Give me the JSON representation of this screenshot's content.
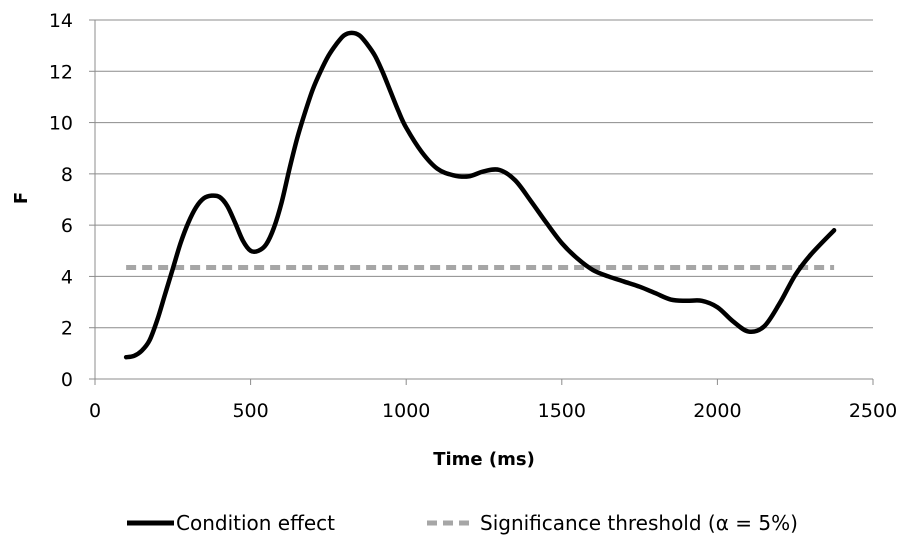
{
  "chart_data": {
    "type": "line",
    "title": "",
    "xlabel": "Time (ms)",
    "ylabel": "F",
    "xlim": [
      0,
      2500
    ],
    "ylim": [
      0,
      14
    ],
    "xticks": [
      0,
      500,
      1000,
      1500,
      2000,
      2500
    ],
    "yticks": [
      0,
      2,
      4,
      6,
      8,
      10,
      12,
      14
    ],
    "grid": {
      "horizontal": true,
      "vertical": false
    },
    "legend_position": "bottom",
    "series": [
      {
        "name": "Condition effect",
        "color": "#000000",
        "style": "solid",
        "x": [
          100,
          125,
          150,
          175,
          200,
          225,
          250,
          275,
          300,
          325,
          350,
          375,
          400,
          425,
          450,
          475,
          500,
          525,
          550,
          575,
          600,
          625,
          650,
          675,
          700,
          725,
          750,
          775,
          800,
          825,
          850,
          875,
          900,
          925,
          950,
          975,
          1000,
          1050,
          1100,
          1150,
          1200,
          1250,
          1300,
          1350,
          1400,
          1450,
          1500,
          1550,
          1600,
          1650,
          1700,
          1750,
          1800,
          1850,
          1900,
          1950,
          2000,
          2050,
          2100,
          2150,
          2200,
          2250,
          2300,
          2375
        ],
        "y": [
          0.85,
          0.9,
          1.1,
          1.5,
          2.3,
          3.3,
          4.3,
          5.3,
          6.1,
          6.7,
          7.05,
          7.15,
          7.1,
          6.75,
          6.1,
          5.4,
          5.0,
          5.0,
          5.25,
          5.9,
          6.9,
          8.2,
          9.4,
          10.4,
          11.3,
          12.0,
          12.6,
          13.05,
          13.4,
          13.5,
          13.4,
          13.05,
          12.6,
          11.95,
          11.2,
          10.45,
          9.8,
          8.85,
          8.2,
          7.95,
          7.9,
          8.1,
          8.15,
          7.75,
          6.95,
          6.1,
          5.3,
          4.7,
          4.25,
          4.0,
          3.8,
          3.6,
          3.35,
          3.1,
          3.05,
          3.05,
          2.8,
          2.25,
          1.85,
          2.05,
          2.95,
          4.05,
          4.85,
          5.8
        ]
      },
      {
        "name": "Significance threshold (α = 5%)",
        "color": "#a6a6a6",
        "style": "dashed",
        "x": [
          100,
          2375
        ],
        "y": [
          4.35,
          4.35
        ]
      }
    ]
  }
}
